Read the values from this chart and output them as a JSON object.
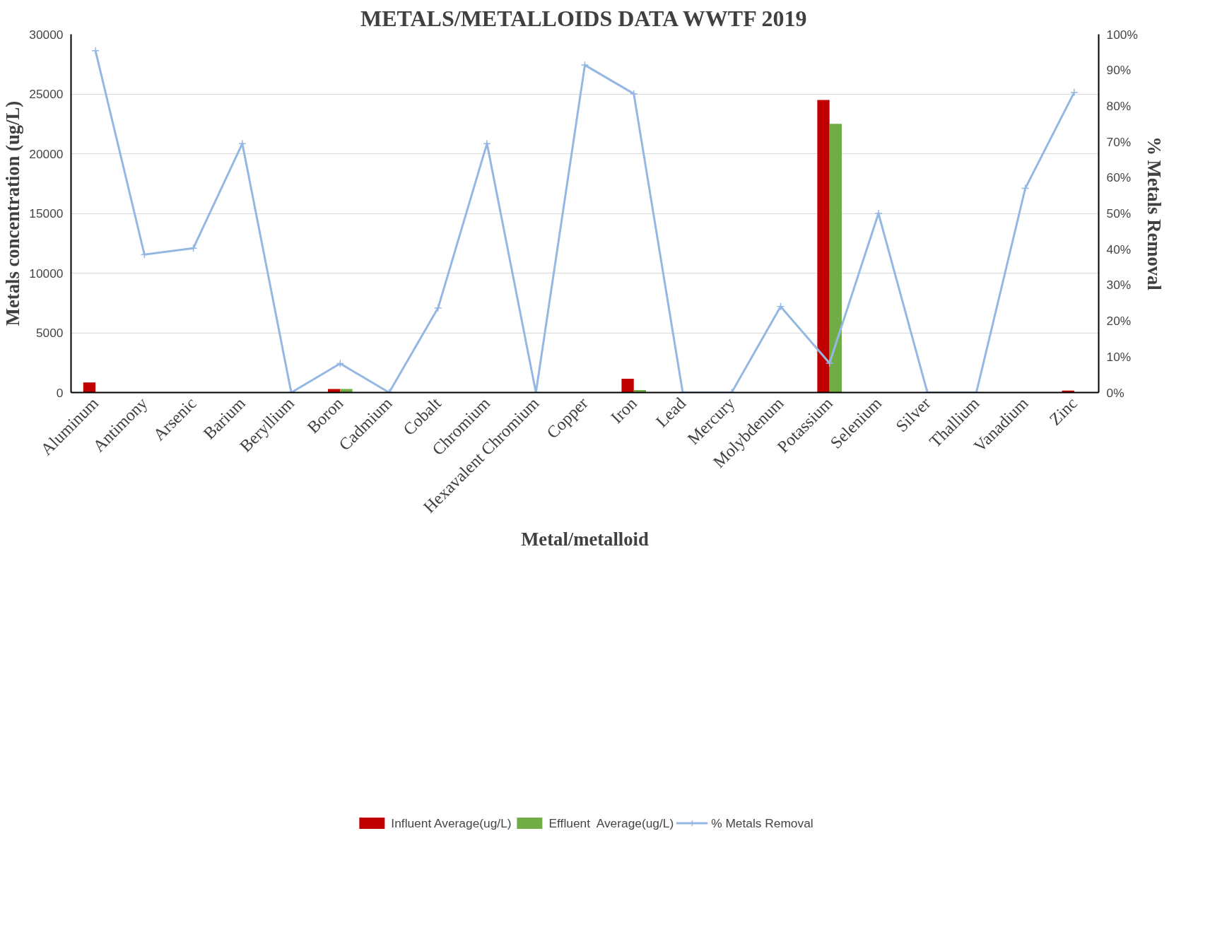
{
  "chart_data": {
    "type": "bar",
    "title": "METALS/METALLOIDS DATA WWTF 2019",
    "xlabel": "Metal/metalloid",
    "ylabel": "Metals concentration (ug/L)",
    "y2label": "% Metals Removal",
    "categories": [
      "Aluminum",
      "Antimony",
      "Arsenic",
      "Barium",
      "Beryllium",
      "Boron",
      "Cadmium",
      "Cobalt",
      "Chromium",
      "Hexavalent Chromium",
      "Copper",
      "Iron",
      "Lead",
      "Mercury",
      "Molybdenum",
      "Potassium",
      "Selenium",
      "Silver",
      "Thallium",
      "Vanadium",
      "Zinc"
    ],
    "series": [
      {
        "name": "Influent Average(ug/L)",
        "color": "#c00000",
        "values": [
          850,
          0,
          0,
          null,
          0,
          300,
          0,
          0,
          0,
          0,
          null,
          1150,
          0,
          0,
          0,
          24500,
          0,
          0,
          0,
          0,
          170
        ]
      },
      {
        "name": "Effluent  Average(ug/L)",
        "color": "#70ad47",
        "values": [
          null,
          0,
          0,
          0,
          0,
          300,
          0,
          0,
          0,
          0,
          0,
          200,
          0,
          0,
          0,
          22500,
          0,
          0,
          0,
          0,
          0
        ]
      },
      {
        "name": "% Metals Removal",
        "type": "line",
        "axis": "y2",
        "color": "#95b8e3",
        "marker": "cross",
        "values": [
          95.4,
          38.5,
          40.3,
          69.5,
          0,
          8.1,
          0,
          23.6,
          69.5,
          0,
          91.4,
          83.4,
          0,
          0,
          24.0,
          8.2,
          50,
          0,
          0,
          57,
          83.8
        ]
      }
    ],
    "ylim": [
      0,
      30000
    ],
    "yticks": [
      0,
      5000,
      10000,
      15000,
      20000,
      25000,
      30000
    ],
    "y2lim": [
      0,
      100
    ],
    "y2ticks": [
      {
        "value": 0,
        "label": "0%"
      },
      {
        "value": 10,
        "label": "10%"
      },
      {
        "value": 20,
        "label": "20%"
      },
      {
        "value": 30,
        "label": "30%"
      },
      {
        "value": 40,
        "label": "40%"
      },
      {
        "value": 50,
        "label": "50%"
      },
      {
        "value": 60,
        "label": "60%"
      },
      {
        "value": 70,
        "label": "70%"
      },
      {
        "value": 80,
        "label": "80%"
      },
      {
        "value": 90,
        "label": "90%"
      },
      {
        "value": 100,
        "label": "100%"
      }
    ],
    "grid": "y",
    "legend": "bottom"
  }
}
